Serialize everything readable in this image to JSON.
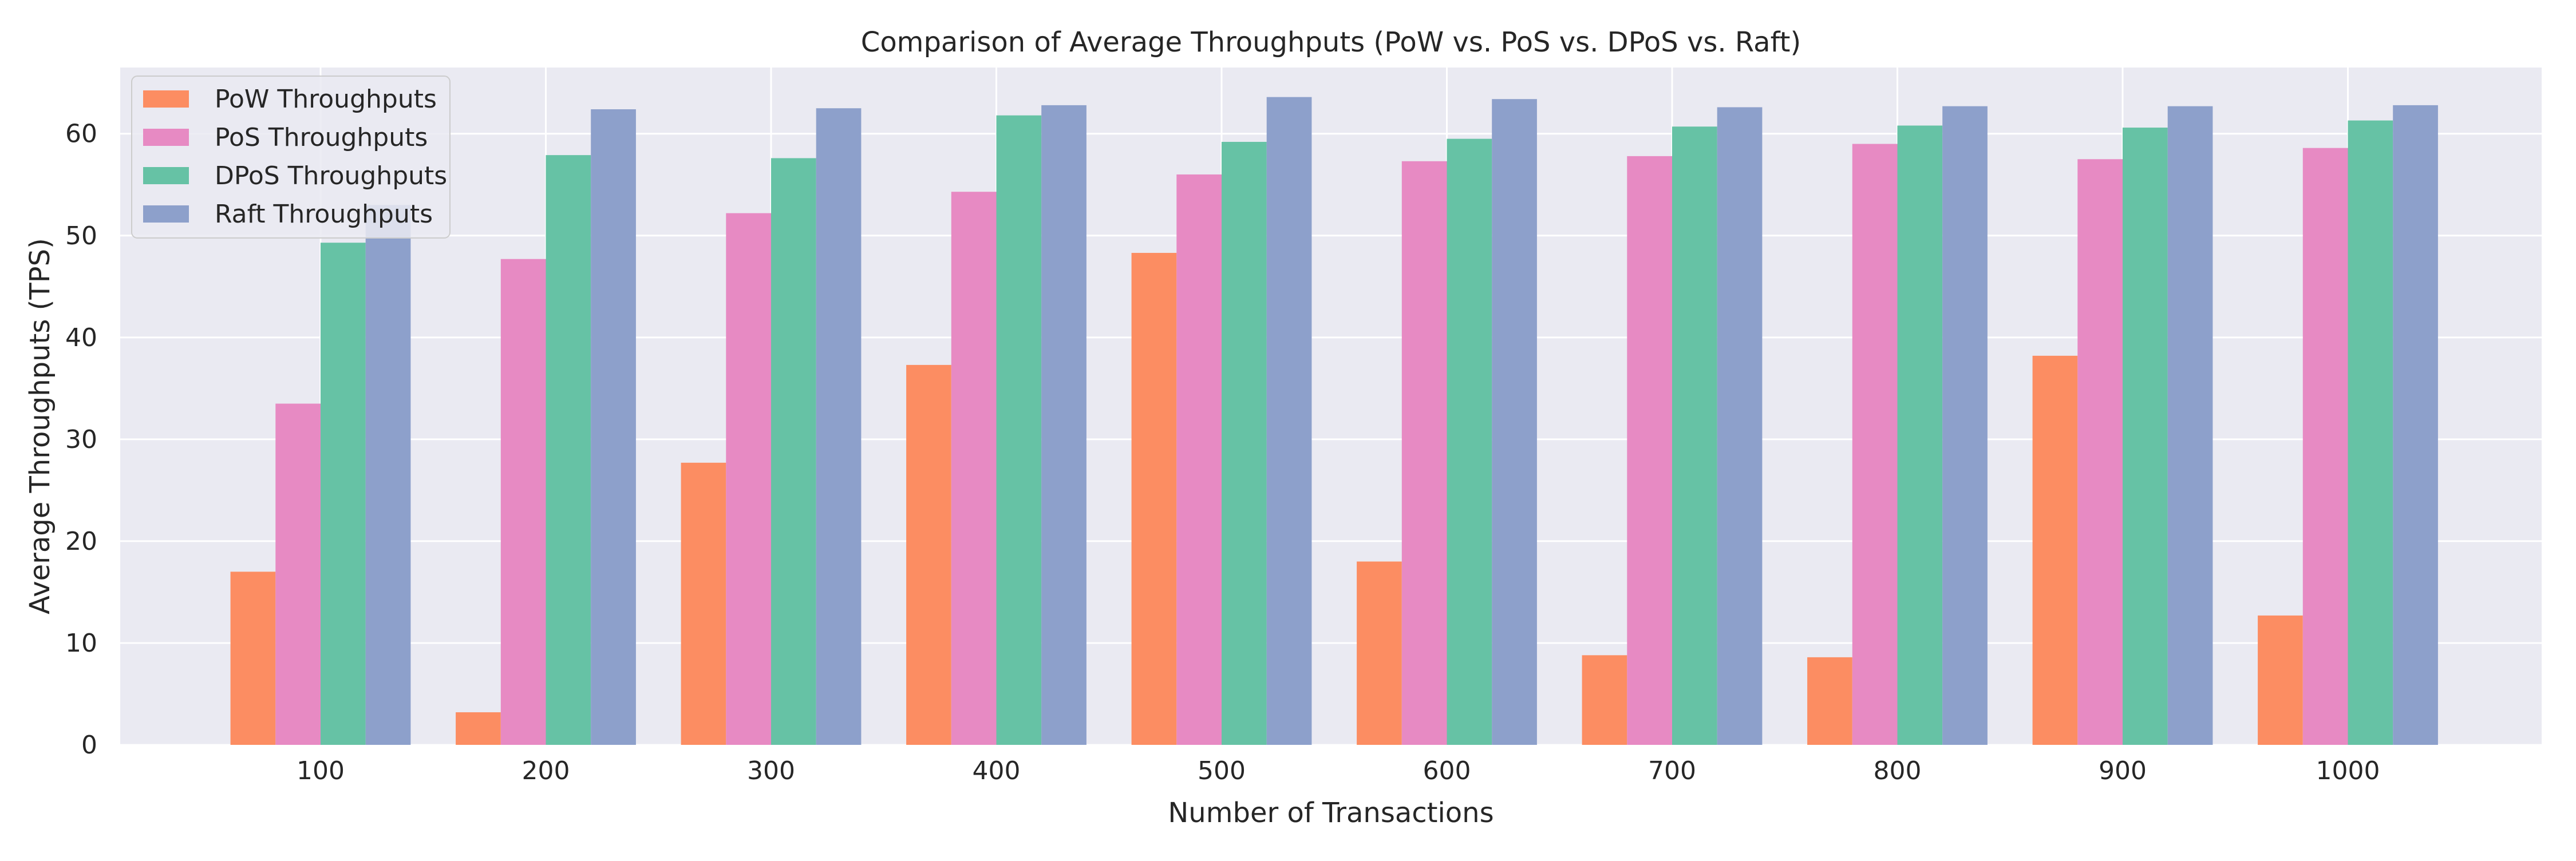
{
  "chart_data": {
    "type": "bar",
    "title": "Comparison of Average Throughputs (PoW vs. PoS vs. DPoS vs. Raft)",
    "xlabel": "Number of Transactions",
    "ylabel": "Average Throughputs (TPS)",
    "categories": [
      "100",
      "200",
      "300",
      "400",
      "500",
      "600",
      "700",
      "800",
      "900",
      "1000"
    ],
    "ylim": [
      0,
      66.5
    ],
    "yticks": [
      "0",
      "10",
      "20",
      "30",
      "40",
      "50",
      "60"
    ],
    "grid": true,
    "legend_position": "top-left",
    "series": [
      {
        "name": "PoW Throughputs",
        "color": "#fc8d62",
        "values": [
          17.0,
          3.2,
          27.7,
          37.3,
          48.3,
          18.0,
          8.8,
          8.6,
          38.2,
          12.7
        ]
      },
      {
        "name": "PoS Throughputs",
        "color": "#e78ac3",
        "values": [
          33.5,
          47.7,
          52.2,
          54.3,
          56.0,
          57.3,
          57.8,
          59.0,
          57.5,
          58.6
        ]
      },
      {
        "name": "DPoS Throughputs",
        "color": "#66c2a5",
        "values": [
          49.3,
          57.9,
          57.6,
          61.8,
          59.2,
          59.5,
          60.7,
          60.8,
          60.6,
          61.3
        ]
      },
      {
        "name": "Raft Throughputs",
        "color": "#8da0cb",
        "values": [
          53.0,
          62.4,
          62.5,
          62.8,
          63.6,
          63.4,
          62.6,
          62.7,
          62.7,
          62.8
        ]
      }
    ]
  }
}
